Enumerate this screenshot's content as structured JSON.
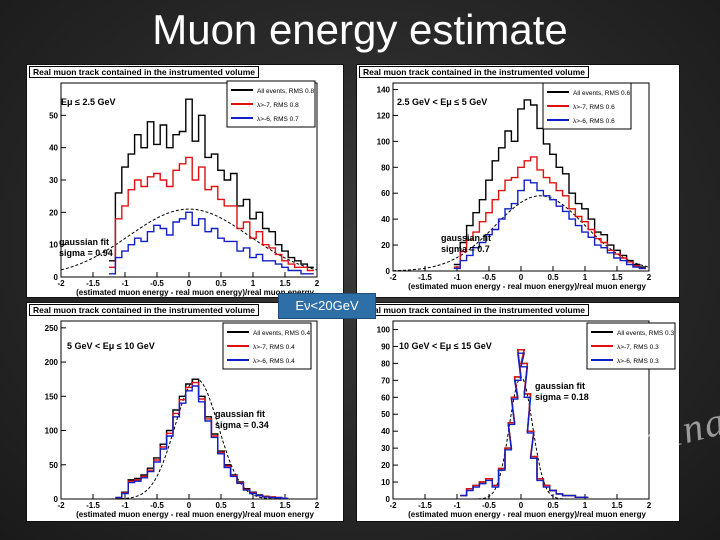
{
  "slide": {
    "title": "Muon energy estimate",
    "overlay_label": "Eν<20GeV",
    "watermark": "Preliminary"
  },
  "chart_data": [
    {
      "type": "line",
      "header": "Real muon track contained in the instrumented volume",
      "energy_range": "Eμ ≤ 2.5 GeV",
      "xlabel": "(estimated muon energy - real muon energy)/real muon energy",
      "xlim": [
        -2,
        2
      ],
      "ylim": [
        0,
        60
      ],
      "xticks": [
        "-2",
        "-1.5",
        "-1",
        "-0.5",
        "0",
        "0.5",
        "1",
        "1.5",
        "2"
      ],
      "yticks": [
        "0",
        "10",
        "20",
        "30",
        "40",
        "50"
      ],
      "fit_label": "gaussian fit",
      "sigma_label": "sigma = 0.94",
      "fit": {
        "mean": 0.0,
        "sigma": 0.94,
        "amp": 21
      },
      "series": [
        {
          "name": "All events, RMS  0.8",
          "color": "#000000",
          "x": [
            -1.2,
            -1.1,
            -1.0,
            -0.9,
            -0.8,
            -0.7,
            -0.6,
            -0.5,
            -0.4,
            -0.3,
            -0.2,
            -0.1,
            0.0,
            0.1,
            0.2,
            0.3,
            0.4,
            0.5,
            0.6,
            0.7,
            0.8,
            0.9,
            1.0,
            1.1,
            1.2,
            1.3,
            1.4,
            1.5,
            1.6,
            1.7,
            1.8,
            1.9
          ],
          "y": [
            5,
            26,
            34,
            38,
            44,
            40,
            48,
            41,
            47,
            40,
            44,
            45,
            55,
            42,
            50,
            37,
            38,
            33,
            30,
            32,
            22,
            24,
            18,
            20,
            15,
            14,
            10,
            8,
            6,
            5,
            4,
            3
          ]
        },
        {
          "name": "λ>-7, RMS  0.8",
          "color": "#e01010",
          "x": [
            -1.2,
            -1.1,
            -1.0,
            -0.9,
            -0.8,
            -0.7,
            -0.6,
            -0.5,
            -0.4,
            -0.3,
            -0.2,
            -0.1,
            0.0,
            0.1,
            0.2,
            0.3,
            0.4,
            0.5,
            0.6,
            0.7,
            0.8,
            0.9,
            1.0,
            1.1,
            1.2,
            1.3,
            1.4,
            1.5,
            1.6,
            1.7,
            1.8,
            1.9
          ],
          "y": [
            3,
            18,
            22,
            27,
            30,
            28,
            31,
            32,
            30,
            28,
            33,
            35,
            37,
            30,
            34,
            27,
            28,
            24,
            22,
            22,
            15,
            17,
            12,
            14,
            10,
            9,
            7,
            5,
            4,
            3,
            3,
            2
          ]
        },
        {
          "name": "λ>-6, RMS  0.7",
          "color": "#1020c8",
          "x": [
            -1.2,
            -1.1,
            -1.0,
            -0.9,
            -0.8,
            -0.7,
            -0.6,
            -0.5,
            -0.4,
            -0.3,
            -0.2,
            -0.1,
            0.0,
            0.1,
            0.2,
            0.3,
            0.4,
            0.5,
            0.6,
            0.7,
            0.8,
            0.9,
            1.0,
            1.1,
            1.2,
            1.3,
            1.4,
            1.5,
            1.6,
            1.7,
            1.8,
            1.9
          ],
          "y": [
            1,
            6,
            8,
            10,
            12,
            11,
            14,
            16,
            15,
            13,
            17,
            18,
            20,
            16,
            18,
            14,
            15,
            12,
            11,
            11,
            8,
            9,
            6,
            7,
            5,
            5,
            4,
            3,
            2,
            2,
            1,
            1
          ]
        }
      ]
    },
    {
      "type": "line",
      "header": "Real muon track contained in the instrumented volume",
      "energy_range": "2.5 GeV < Eμ ≤ 5 GeV",
      "xlabel": "(estimated muon energy - real muon energy)/real muon energy",
      "xlim": [
        -2,
        2
      ],
      "ylim": [
        0,
        145
      ],
      "xticks": [
        "-2",
        "-1.5",
        "-1",
        "-0.5",
        "0",
        "0.5",
        "1",
        "1.5",
        "2"
      ],
      "yticks": [
        "0",
        "20",
        "40",
        "60",
        "80",
        "100",
        "120",
        "140"
      ],
      "fit_label": "gaussian fit",
      "sigma_label": "sigma = 0.7",
      "fit": {
        "mean": 0.3,
        "sigma": 0.7,
        "amp": 58
      },
      "series": [
        {
          "name": "All events, RMS  0.6",
          "color": "#000000",
          "x": [
            -1.0,
            -0.9,
            -0.8,
            -0.7,
            -0.6,
            -0.5,
            -0.4,
            -0.3,
            -0.2,
            -0.1,
            0.0,
            0.1,
            0.2,
            0.3,
            0.4,
            0.5,
            0.6,
            0.7,
            0.8,
            0.9,
            1.0,
            1.1,
            1.2,
            1.3,
            1.4,
            1.5,
            1.6,
            1.7,
            1.8,
            1.9
          ],
          "y": [
            5,
            22,
            35,
            45,
            55,
            70,
            85,
            95,
            108,
            100,
            125,
            132,
            128,
            110,
            98,
            90,
            80,
            75,
            60,
            52,
            48,
            40,
            30,
            28,
            20,
            16,
            12,
            8,
            5,
            3
          ]
        },
        {
          "name": "λ>-7, RMS  0.6",
          "color": "#e01010",
          "x": [
            -1.0,
            -0.9,
            -0.8,
            -0.7,
            -0.6,
            -0.5,
            -0.4,
            -0.3,
            -0.2,
            -0.1,
            0.0,
            0.1,
            0.2,
            0.3,
            0.4,
            0.5,
            0.6,
            0.7,
            0.8,
            0.9,
            1.0,
            1.1,
            1.2,
            1.3,
            1.4,
            1.5,
            1.6,
            1.7,
            1.8,
            1.9
          ],
          "y": [
            3,
            15,
            24,
            30,
            38,
            45,
            55,
            62,
            70,
            72,
            80,
            85,
            88,
            78,
            72,
            68,
            62,
            58,
            48,
            42,
            38,
            32,
            25,
            22,
            16,
            13,
            10,
            7,
            4,
            2
          ]
        },
        {
          "name": "λ>-6, RMS  0.6",
          "color": "#1020c8",
          "x": [
            -1.0,
            -0.9,
            -0.8,
            -0.7,
            -0.6,
            -0.5,
            -0.4,
            -0.3,
            -0.2,
            -0.1,
            0.0,
            0.1,
            0.2,
            0.3,
            0.4,
            0.5,
            0.6,
            0.7,
            0.8,
            0.9,
            1.0,
            1.1,
            1.2,
            1.3,
            1.4,
            1.5,
            1.6,
            1.7,
            1.8,
            1.9
          ],
          "y": [
            2,
            8,
            12,
            18,
            22,
            28,
            32,
            40,
            48,
            52,
            62,
            70,
            68,
            62,
            58,
            55,
            50,
            46,
            40,
            35,
            30,
            26,
            20,
            18,
            14,
            10,
            8,
            5,
            3,
            2
          ]
        }
      ]
    },
    {
      "type": "line",
      "header": "Real muon track contained in the instrumented volume",
      "energy_range": "5 GeV < Eμ ≤ 10 GeV",
      "xlabel": "(estimated muon energy - real muon energy)/real muon energy",
      "xlim": [
        -2,
        2
      ],
      "ylim": [
        0,
        260
      ],
      "xticks": [
        "-2",
        "-1.5",
        "-1",
        "-0.5",
        "0",
        "0.5",
        "1",
        "1.5",
        "2"
      ],
      "yticks": [
        "0",
        "50",
        "100",
        "150",
        "200",
        "250"
      ],
      "fit_label": "gaussian fit",
      "sigma_label": "sigma = 0.34",
      "fit": {
        "mean": 0.12,
        "sigma": 0.34,
        "amp": 175
      },
      "series": [
        {
          "name": "All events, RMS  0.4",
          "color": "#000000",
          "x": [
            -1.1,
            -1.0,
            -0.9,
            -0.8,
            -0.7,
            -0.6,
            -0.5,
            -0.4,
            -0.3,
            -0.2,
            -0.1,
            0.0,
            0.1,
            0.2,
            0.3,
            0.4,
            0.5,
            0.6,
            0.7,
            0.8,
            0.9,
            1.0,
            1.1,
            1.2,
            1.3,
            1.4,
            1.5
          ],
          "y": [
            2,
            10,
            28,
            30,
            35,
            45,
            60,
            80,
            100,
            130,
            150,
            168,
            175,
            150,
            120,
            95,
            70,
            50,
            35,
            25,
            15,
            10,
            6,
            4,
            3,
            2,
            1
          ]
        },
        {
          "name": "λ>-7, RMS  0.4",
          "color": "#e01010",
          "x": [
            -1.1,
            -1.0,
            -0.9,
            -0.8,
            -0.7,
            -0.6,
            -0.5,
            -0.4,
            -0.3,
            -0.2,
            -0.1,
            0.0,
            0.1,
            0.2,
            0.3,
            0.4,
            0.5,
            0.6,
            0.7,
            0.8,
            0.9,
            1.0,
            1.1,
            1.2,
            1.3,
            1.4,
            1.5
          ],
          "y": [
            2,
            9,
            26,
            28,
            33,
            42,
            57,
            76,
            96,
            125,
            145,
            163,
            170,
            146,
            117,
            92,
            68,
            48,
            34,
            24,
            14,
            9,
            5,
            4,
            3,
            2,
            1
          ]
        },
        {
          "name": "λ>-6, RMS  0.4",
          "color": "#1020c8",
          "x": [
            -1.1,
            -1.0,
            -0.9,
            -0.8,
            -0.7,
            -0.6,
            -0.5,
            -0.4,
            -0.3,
            -0.2,
            -0.1,
            0.0,
            0.1,
            0.2,
            0.3,
            0.4,
            0.5,
            0.6,
            0.7,
            0.8,
            0.9,
            1.0,
            1.1,
            1.2,
            1.3,
            1.4,
            1.5
          ],
          "y": [
            2,
            8,
            24,
            26,
            31,
            40,
            54,
            73,
            92,
            120,
            140,
            158,
            165,
            142,
            114,
            90,
            66,
            46,
            33,
            23,
            13,
            8,
            5,
            3,
            2,
            2,
            1
          ]
        }
      ]
    },
    {
      "type": "line",
      "header": "Real muon track contained in the instrumented volume",
      "energy_range": "10 GeV < Eμ ≤ 15 GeV",
      "xlabel": "(estimated muon energy - real muon energy)/real muon energy",
      "xlim": [
        -2,
        2
      ],
      "ylim": [
        0,
        105
      ],
      "xticks": [
        "-2",
        "-1.5",
        "-1",
        "-0.5",
        "0",
        "0.5",
        "1",
        "1.5",
        "2"
      ],
      "yticks": [
        "0",
        "10",
        "20",
        "30",
        "40",
        "50",
        "60",
        "70",
        "80",
        "90",
        "100"
      ],
      "fit_label": "gaussian fit",
      "sigma_label": "sigma = 0.18",
      "fit": {
        "mean": 0.0,
        "sigma": 0.18,
        "amp": 72
      },
      "series": [
        {
          "name": "All events, RMS  0.3",
          "color": "#000000",
          "x": [
            -0.9,
            -0.8,
            -0.7,
            -0.6,
            -0.5,
            -0.4,
            -0.3,
            -0.2,
            -0.15,
            -0.1,
            -0.05,
            0.0,
            0.05,
            0.1,
            0.15,
            0.2,
            0.3,
            0.4,
            0.5,
            0.6,
            0.7,
            0.8,
            0.9,
            1.0
          ],
          "y": [
            2,
            6,
            8,
            10,
            12,
            8,
            18,
            30,
            45,
            60,
            72,
            88,
            80,
            62,
            40,
            25,
            12,
            8,
            5,
            3,
            2,
            2,
            1,
            1
          ]
        },
        {
          "name": "λ>-7, RMS  0.3",
          "color": "#e01010",
          "x": [
            -0.9,
            -0.8,
            -0.7,
            -0.6,
            -0.5,
            -0.4,
            -0.3,
            -0.2,
            -0.15,
            -0.1,
            -0.05,
            0.0,
            0.05,
            0.1,
            0.15,
            0.2,
            0.3,
            0.4,
            0.5,
            0.6,
            0.7,
            0.8,
            0.9,
            1.0
          ],
          "y": [
            2,
            6,
            8,
            10,
            12,
            8,
            18,
            30,
            45,
            60,
            72,
            88,
            80,
            62,
            40,
            25,
            12,
            8,
            5,
            3,
            2,
            2,
            1,
            1
          ]
        },
        {
          "name": "λ>-6, RMS  0.3",
          "color": "#1020c8",
          "x": [
            -0.9,
            -0.8,
            -0.7,
            -0.6,
            -0.5,
            -0.4,
            -0.3,
            -0.2,
            -0.15,
            -0.1,
            -0.05,
            0.0,
            0.05,
            0.1,
            0.15,
            0.2,
            0.3,
            0.4,
            0.5,
            0.6,
            0.7,
            0.8,
            0.9,
            1.0
          ],
          "y": [
            2,
            5,
            7,
            9,
            11,
            7,
            17,
            29,
            44,
            59,
            70,
            86,
            78,
            60,
            39,
            24,
            11,
            7,
            5,
            3,
            2,
            2,
            1,
            1
          ]
        }
      ]
    }
  ]
}
